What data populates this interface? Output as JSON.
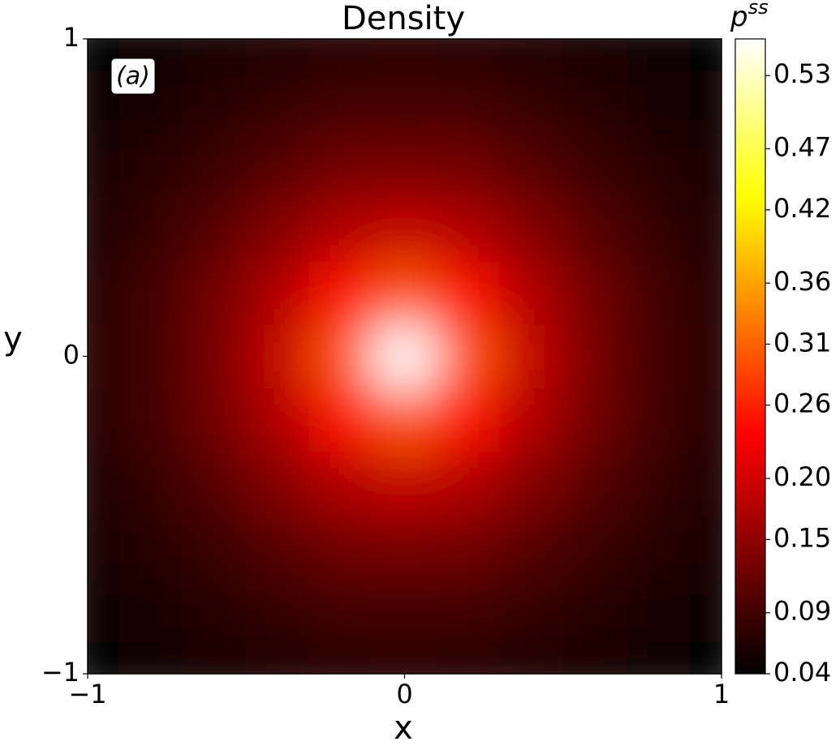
{
  "chart_data": {
    "type": "heatmap",
    "title": "Density",
    "xlabel": "x",
    "ylabel": "y",
    "colorbar_label": "p",
    "colorbar_label_sup": "ss",
    "annotation": "(a)",
    "colormap": "hot",
    "x": [
      -1,
      -0.8,
      -0.6,
      -0.4,
      -0.2,
      0,
      0.2,
      0.4,
      0.6,
      0.8,
      1
    ],
    "y": [
      -1,
      -0.8,
      -0.6,
      -0.4,
      -0.2,
      0,
      0.2,
      0.4,
      0.6,
      0.8,
      1
    ],
    "z": [
      [
        0.04,
        0.048,
        0.054,
        0.061,
        0.066,
        0.068,
        0.066,
        0.061,
        0.054,
        0.048,
        0.04
      ],
      [
        0.048,
        0.057,
        0.068,
        0.078,
        0.088,
        0.09,
        0.088,
        0.078,
        0.068,
        0.057,
        0.048
      ],
      [
        0.054,
        0.068,
        0.083,
        0.105,
        0.125,
        0.13,
        0.125,
        0.105,
        0.083,
        0.068,
        0.054
      ],
      [
        0.061,
        0.078,
        0.105,
        0.14,
        0.175,
        0.19,
        0.175,
        0.14,
        0.105,
        0.078,
        0.061
      ],
      [
        0.066,
        0.088,
        0.125,
        0.175,
        0.24,
        0.3,
        0.24,
        0.175,
        0.125,
        0.088,
        0.066
      ],
      [
        0.068,
        0.09,
        0.13,
        0.19,
        0.3,
        0.56,
        0.3,
        0.19,
        0.13,
        0.09,
        0.068
      ],
      [
        0.066,
        0.088,
        0.125,
        0.175,
        0.24,
        0.3,
        0.24,
        0.175,
        0.125,
        0.088,
        0.066
      ],
      [
        0.061,
        0.078,
        0.105,
        0.14,
        0.175,
        0.19,
        0.175,
        0.14,
        0.105,
        0.078,
        0.061
      ],
      [
        0.054,
        0.068,
        0.083,
        0.105,
        0.125,
        0.13,
        0.125,
        0.105,
        0.083,
        0.068,
        0.054
      ],
      [
        0.048,
        0.057,
        0.068,
        0.078,
        0.088,
        0.09,
        0.088,
        0.078,
        0.068,
        0.057,
        0.048
      ],
      [
        0.04,
        0.048,
        0.054,
        0.061,
        0.066,
        0.068,
        0.066,
        0.061,
        0.054,
        0.048,
        0.04
      ]
    ],
    "xlim": [
      -1,
      1
    ],
    "ylim": [
      -1,
      1
    ],
    "xticks": [
      {
        "value": -1,
        "label": "−1"
      },
      0,
      1
    ],
    "yticks": [
      {
        "value": -1,
        "label": "−1"
      },
      0,
      1
    ],
    "zlim": [
      0.04,
      0.56
    ],
    "zticks": [
      0.04,
      0.09,
      0.15,
      {
        "value": 0.2,
        "label": "0.20"
      },
      0.26,
      0.31,
      0.36,
      0.42,
      0.47,
      0.53
    ]
  }
}
